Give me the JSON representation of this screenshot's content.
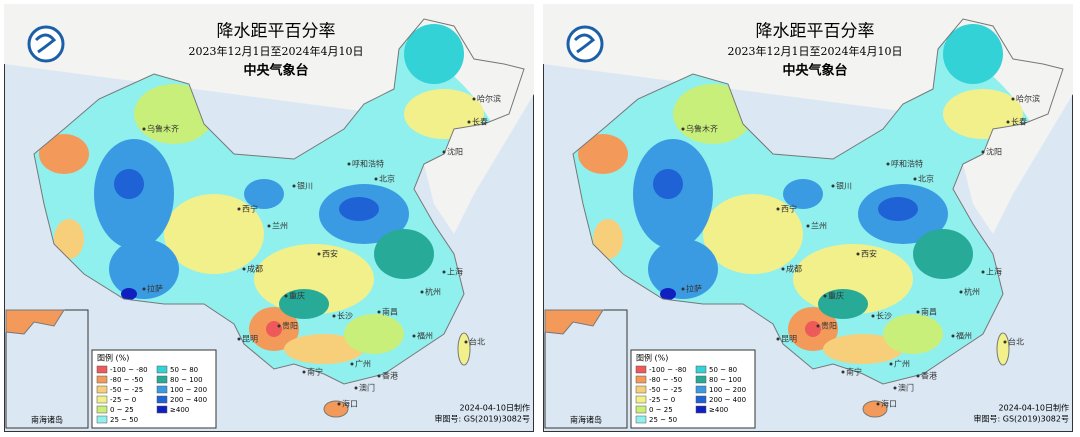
{
  "panels": [
    {
      "title": "降水距平百分率",
      "subtitle": "2023年12月1日至2024年4月10日",
      "agency": "中央气象台",
      "legend_title": "图例 (%)",
      "legend": [
        {
          "label": "-100 ~ -80",
          "color": "#ee5a5a"
        },
        {
          "label": "-80 ~ -50",
          "color": "#f39a5a"
        },
        {
          "label": "-50 ~ -25",
          "color": "#f7cf7a"
        },
        {
          "label": "-25 ~ 0",
          "color": "#f2f08a"
        },
        {
          "label": "0 ~ 25",
          "color": "#c8ef7a"
        },
        {
          "label": "25 ~ 50",
          "color": "#8ff0ee"
        },
        {
          "label": "50 ~ 80",
          "color": "#33d2d6"
        },
        {
          "label": "80 ~ 100",
          "color": "#27ab98"
        },
        {
          "label": "100 ~ 200",
          "color": "#3a9be2"
        },
        {
          "label": "200 ~ 400",
          "color": "#1e62d6"
        },
        {
          "label": "≥400",
          "color": "#1020c0"
        }
      ],
      "cities": [
        "乌鲁木齐",
        "呼和浩特",
        "哈尔滨",
        "长春",
        "沈阳",
        "北京",
        "拉萨",
        "西宁",
        "兰州",
        "银川",
        "西安",
        "成都",
        "重庆",
        "昆明",
        "贵阳",
        "长沙",
        "南昌",
        "杭州",
        "上海",
        "福州",
        "台北",
        "广州",
        "南宁",
        "香港",
        "澳门",
        "海口"
      ],
      "inset_label": "南海诸岛",
      "footer": [
        "2024-04-10日制作",
        "审图号: GS(2019)3082号"
      ]
    },
    {
      "title": "降水距平百分率",
      "subtitle": "2023年12月1日至2024年4月10日",
      "agency": "中央气象台",
      "legend_title": "图例 (%)",
      "legend": [
        {
          "label": "-100 ~ -80",
          "color": "#ee5a5a"
        },
        {
          "label": "-80 ~ -50",
          "color": "#f39a5a"
        },
        {
          "label": "-50 ~ -25",
          "color": "#f7cf7a"
        },
        {
          "label": "-25 ~ 0",
          "color": "#f2f08a"
        },
        {
          "label": "0 ~ 25",
          "color": "#c8ef7a"
        },
        {
          "label": "25 ~ 50",
          "color": "#8ff0ee"
        },
        {
          "label": "50 ~ 80",
          "color": "#33d2d6"
        },
        {
          "label": "80 ~ 100",
          "color": "#27ab98"
        },
        {
          "label": "100 ~ 200",
          "color": "#3a9be2"
        },
        {
          "label": "200 ~ 400",
          "color": "#1e62d6"
        },
        {
          "label": "≥400",
          "color": "#1020c0"
        }
      ],
      "cities": [
        "乌鲁木齐",
        "呼和浩特",
        "哈尔滨",
        "长春",
        "沈阳",
        "北京",
        "拉萨",
        "西宁",
        "兰州",
        "银川",
        "西安",
        "成都",
        "重庆",
        "昆明",
        "贵阳",
        "长沙",
        "南昌",
        "杭州",
        "上海",
        "福州",
        "台北",
        "广州",
        "南宁",
        "香港",
        "澳门",
        "海口"
      ],
      "inset_label": "南海诸岛",
      "footer": [
        "2024-04-10日制作",
        "审图号: GS(2019)3082号"
      ]
    }
  ]
}
